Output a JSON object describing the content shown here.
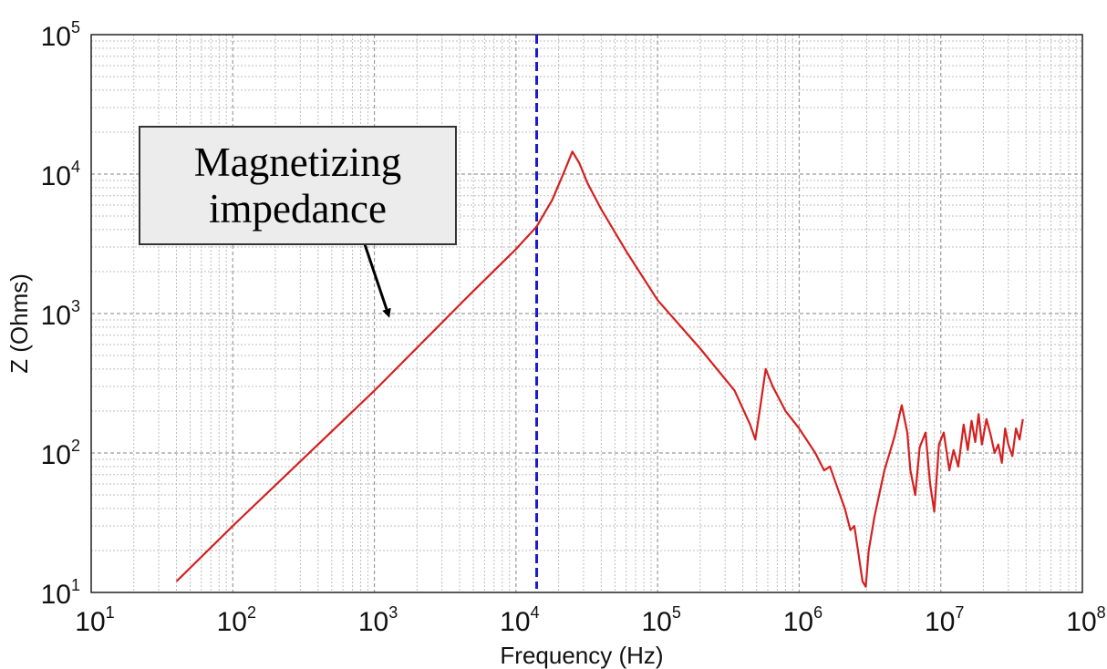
{
  "chart_data": {
    "type": "line",
    "title": "",
    "xlabel": "Frequency (Hz)",
    "ylabel": "Z (Ohms)",
    "xscale": "log",
    "yscale": "log",
    "xlim": [
      10,
      100000000
    ],
    "ylim": [
      10,
      100000
    ],
    "grid": true,
    "x_ticks": [
      {
        "base": "10",
        "exp": "1"
      },
      {
        "base": "10",
        "exp": "2"
      },
      {
        "base": "10",
        "exp": "3"
      },
      {
        "base": "10",
        "exp": "4"
      },
      {
        "base": "10",
        "exp": "5"
      },
      {
        "base": "10",
        "exp": "6"
      },
      {
        "base": "10",
        "exp": "7"
      },
      {
        "base": "10",
        "exp": "8"
      }
    ],
    "y_ticks": [
      {
        "base": "10",
        "exp": "1"
      },
      {
        "base": "10",
        "exp": "2"
      },
      {
        "base": "10",
        "exp": "3"
      },
      {
        "base": "10",
        "exp": "4"
      },
      {
        "base": "10",
        "exp": "5"
      }
    ],
    "series": [
      {
        "color": "#d42020",
        "x": [
          40,
          100,
          1000,
          5000,
          10000,
          14000,
          18000,
          22000,
          25000,
          28000,
          32000,
          40000,
          60000,
          100000,
          200000,
          350000,
          450000,
          490000,
          530000,
          580000,
          650000,
          800000,
          1000000,
          1300000,
          1500000,
          1650000,
          1800000,
          2100000,
          2300000,
          2450000,
          2600000,
          2800000,
          2950000,
          3100000,
          3400000,
          4000000,
          4700000,
          5300000,
          5800000,
          6100000,
          6600000,
          7100000,
          7800000,
          8400000,
          9000000,
          9700000,
          10500000,
          11500000,
          12300000,
          13300000,
          14500000,
          15500000,
          16500000,
          17500000,
          18500000,
          19500000,
          21000000,
          22500000,
          24000000,
          25500000,
          27000000,
          28500000,
          30000000,
          32000000,
          34000000,
          36000000,
          38000000
        ],
        "y": [
          12,
          30,
          280,
          1450,
          2900,
          4200,
          6500,
          10500,
          14500,
          12000,
          8600,
          5600,
          2800,
          1250,
          560,
          280,
          160,
          125,
          210,
          400,
          300,
          200,
          150,
          100,
          75,
          80,
          62,
          40,
          28,
          30,
          20,
          12,
          11,
          20,
          35,
          75,
          130,
          220,
          140,
          75,
          50,
          110,
          140,
          60,
          38,
          115,
          140,
          75,
          105,
          80,
          160,
          105,
          170,
          120,
          190,
          115,
          175,
          135,
          100,
          115,
          85,
          150,
          115,
          95,
          150,
          125,
          175
        ]
      }
    ],
    "vline": {
      "x": 14000,
      "color": "#1a1ad0",
      "style": "dashed"
    },
    "annotation": {
      "line1": "Magnetizing",
      "line2": "impedance",
      "arrow_to": {
        "x": 1200,
        "y": 900
      }
    }
  }
}
